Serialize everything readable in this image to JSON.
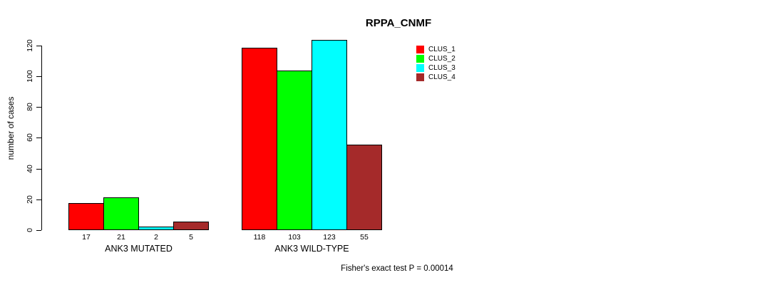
{
  "title": "RPPA_CNMF",
  "chart_data": {
    "type": "bar",
    "title": "RPPA_CNMF",
    "ylabel": "number of cases",
    "xlabel": "",
    "ylim": [
      0,
      120
    ],
    "yticks": [
      0,
      20,
      40,
      60,
      80,
      100,
      120
    ],
    "grid": false,
    "legend_position": "top-right",
    "categories": [
      "ANK3 MUTATED",
      "ANK3 WILD-TYPE"
    ],
    "series": [
      {
        "name": "CLUS_1",
        "color": "#ff0000",
        "values": [
          17,
          118
        ]
      },
      {
        "name": "CLUS_2",
        "color": "#00ff00",
        "values": [
          21,
          103
        ]
      },
      {
        "name": "CLUS_3",
        "color": "#00ffff",
        "values": [
          2,
          123
        ]
      },
      {
        "name": "CLUS_4",
        "color": "#a52a2a",
        "values": [
          5,
          55
        ]
      }
    ],
    "bar_value_labels": [
      [
        17,
        21,
        2,
        5
      ],
      [
        118,
        103,
        123,
        55
      ]
    ],
    "annotation": "Fisher's exact test P = 0.00014"
  },
  "colors": {
    "background": "#ffffff",
    "axis": "#000000",
    "bar_border": "#000000"
  }
}
